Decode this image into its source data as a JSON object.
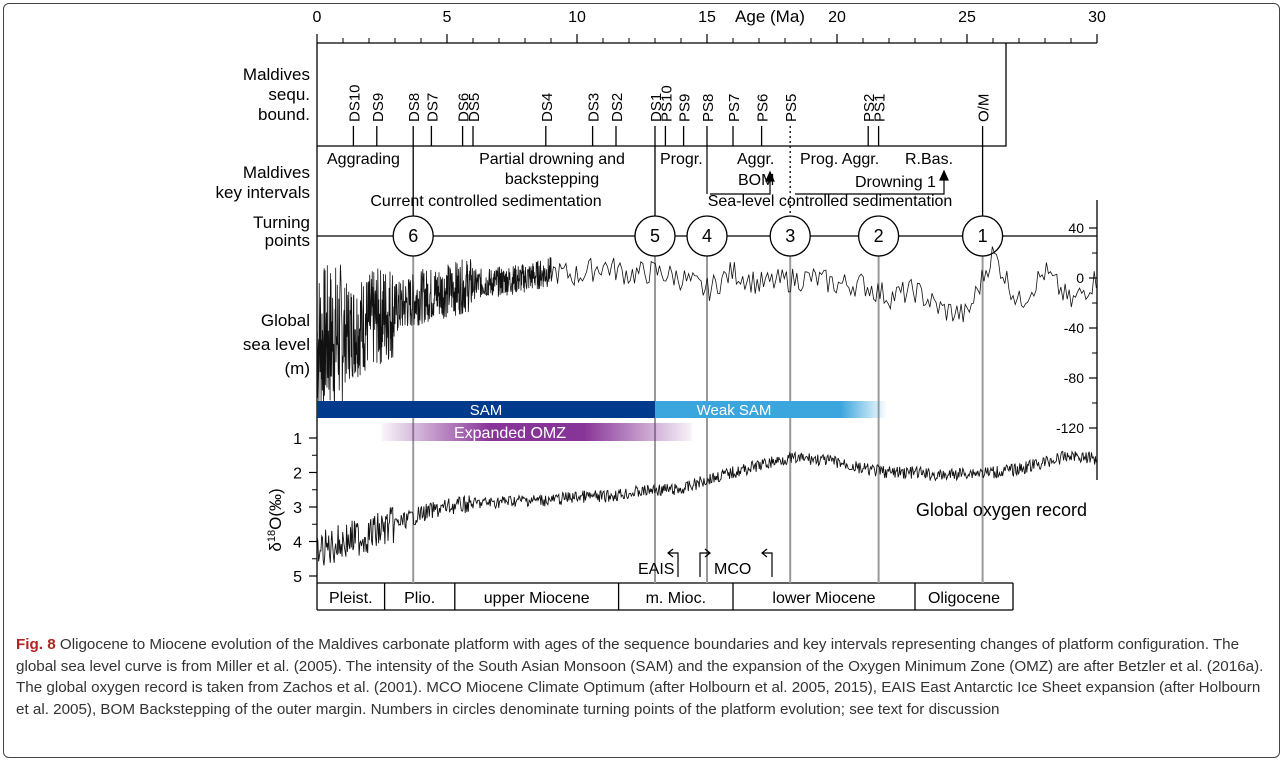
{
  "figure": {
    "age_axis_label": "Age (Ma)",
    "age_ticks": [
      0,
      5,
      10,
      15,
      20,
      25,
      30
    ],
    "row_labels": {
      "sequ": [
        "Maldives",
        "sequ.",
        "bound."
      ],
      "key": [
        "Maldives",
        "key intervals"
      ],
      "turning": [
        "Turning",
        "points"
      ],
      "sealevel": [
        "Global",
        "sea level",
        "(m)"
      ]
    },
    "sequence_boundaries": [
      {
        "label": "DS10",
        "age": 1.4
      },
      {
        "label": "DS9",
        "age": 2.3
      },
      {
        "label": "DS8",
        "age": 3.7
      },
      {
        "label": "DS7",
        "age": 4.4
      },
      {
        "label": "DS6",
        "age": 5.6
      },
      {
        "label": "DS5",
        "age": 6.0
      },
      {
        "label": "DS4",
        "age": 8.8
      },
      {
        "label": "DS3",
        "age": 10.6
      },
      {
        "label": "DS2",
        "age": 11.5
      },
      {
        "label": "DS1",
        "age": 13.0
      },
      {
        "label": "PS10",
        "age": 13.4
      },
      {
        "label": "PS9",
        "age": 14.1
      },
      {
        "label": "PS8",
        "age": 15.0
      },
      {
        "label": "PS7",
        "age": 16.0
      },
      {
        "label": "PS6",
        "age": 17.1
      },
      {
        "label": "PS5",
        "age": 18.2
      },
      {
        "label": "PS2",
        "age": 21.2
      },
      {
        "label": "PS1",
        "age": 21.6
      },
      {
        "label": "O/M",
        "age": 25.6
      }
    ],
    "key_intervals": [
      {
        "label": "Aggrading",
        "age": 1.8
      },
      {
        "label": "Partial drowning and",
        "age": 9.0
      },
      {
        "label": "backstepping",
        "age": 9.2
      },
      {
        "label": "Progr.",
        "age": 14.0
      },
      {
        "label": "Aggr.",
        "age": 16.7
      },
      {
        "label": "BOM",
        "age": 16.6
      },
      {
        "label": "Prog. Aggr.",
        "age": 19.7
      },
      {
        "label": "R.Bas.",
        "age": 22.6
      },
      {
        "label": "Drowning 1",
        "age": 22.6
      },
      {
        "label": "Current controlled sedimentation",
        "age": 7.5
      },
      {
        "label": "Sea-level controlled sedimentation",
        "age": 19.5
      }
    ],
    "turning_points": [
      {
        "label": "6",
        "age": 3.7
      },
      {
        "label": "5",
        "age": 13.0
      },
      {
        "label": "4",
        "age": 15.0
      },
      {
        "label": "3",
        "age": 18.2
      },
      {
        "label": "2",
        "age": 21.6
      },
      {
        "label": "1",
        "age": 25.6
      }
    ],
    "sealevel_ticks": [
      40,
      0,
      -40,
      -80,
      -120
    ],
    "d18o_ticks": [
      1,
      2,
      3,
      4,
      5
    ],
    "d18o_label": "δ18O(‰)",
    "bands": {
      "sam": "SAM",
      "weak_sam": "Weak SAM",
      "omz": "Expanded OMZ"
    },
    "oxygen_record_label": "Global oxygen record",
    "events": {
      "eais": "EAIS",
      "mco": "MCO"
    },
    "epochs": [
      {
        "label": "Pleist.",
        "start": 0,
        "end": 2.6
      },
      {
        "label": "Plio.",
        "start": 2.6,
        "end": 5.3
      },
      {
        "label": "upper Miocene",
        "start": 5.3,
        "end": 11.6
      },
      {
        "label": "m. Mioc.",
        "start": 11.6,
        "end": 16.0
      },
      {
        "label": "lower Miocene",
        "start": 16.0,
        "end": 23.0
      },
      {
        "label": "Oligocene",
        "start": 23.0,
        "end": 30.0
      }
    ],
    "colors": {
      "sam": "#003a8c",
      "weak_sam": "#3aa6dd",
      "omz": "#7a1e8c",
      "vline": "#999999"
    }
  },
  "chart_data": [
    {
      "type": "line",
      "title": "Global sea level (m)",
      "xlabel": "Age (Ma)",
      "ylabel": "Global sea level (m)",
      "xlim": [
        0,
        30
      ],
      "ylim": [
        -140,
        50
      ],
      "series": [
        {
          "x": [
            0,
            1,
            2,
            3,
            4,
            5,
            6,
            7,
            8,
            9,
            10,
            11,
            12,
            13,
            14,
            15,
            16,
            17,
            18,
            19,
            20,
            21,
            22,
            23,
            24,
            25,
            26,
            27,
            28,
            29,
            30
          ],
          "values": [
            -50,
            -45,
            -35,
            -25,
            -15,
            -10,
            -5,
            -3,
            0,
            5,
            2,
            10,
            3,
            5,
            0,
            -10,
            5,
            -5,
            -2,
            0,
            -5,
            -5,
            -15,
            -10,
            -25,
            -30,
            20,
            -20,
            5,
            -20,
            0
          ]
        }
      ]
    },
    {
      "type": "line",
      "title": "Global oxygen record",
      "xlabel": "Age (Ma)",
      "ylabel": "δ18O(‰)",
      "xlim": [
        0,
        30
      ],
      "ylim": [
        5.3,
        0.8
      ],
      "series": [
        {
          "name": "Global oxygen record",
          "x": [
            0,
            1,
            2,
            3,
            4,
            5,
            6,
            7,
            8,
            9,
            10,
            11,
            12,
            13,
            14,
            15,
            16,
            17,
            18,
            19,
            20,
            21,
            22,
            23,
            24,
            25,
            26,
            27,
            28,
            29,
            30
          ],
          "values": [
            4.3,
            4.0,
            3.8,
            3.5,
            3.2,
            3.0,
            2.9,
            2.85,
            2.8,
            2.8,
            2.7,
            2.7,
            2.6,
            2.5,
            2.5,
            2.2,
            2.0,
            1.8,
            1.6,
            1.6,
            1.7,
            1.9,
            2.0,
            2.0,
            2.1,
            2.0,
            2.0,
            1.9,
            1.7,
            1.5,
            1.6
          ]
        }
      ]
    }
  ],
  "caption": {
    "label": "Fig. 8",
    "text": " Oligocene to Miocene evolution of the Maldives carbonate platform with ages of the sequence boundaries and key intervals representing changes of platform configuration. The global sea level curve is from Miller et al. (2005). The intensity of the South Asian Monsoon (SAM) and the expansion of the Oxygen Minimum Zone (OMZ) are after Betzler et al. (2016a). The global oxygen record is taken from Zachos et al. (2001). MCO Miocene Climate Optimum (after Holbourn et al. 2005, 2015), EAIS East Antarctic Ice Sheet expansion (after Holbourn et al. 2005), BOM Backstepping of the outer margin. Numbers in circles denominate turning points of the platform evolution; see text for discussion"
  }
}
